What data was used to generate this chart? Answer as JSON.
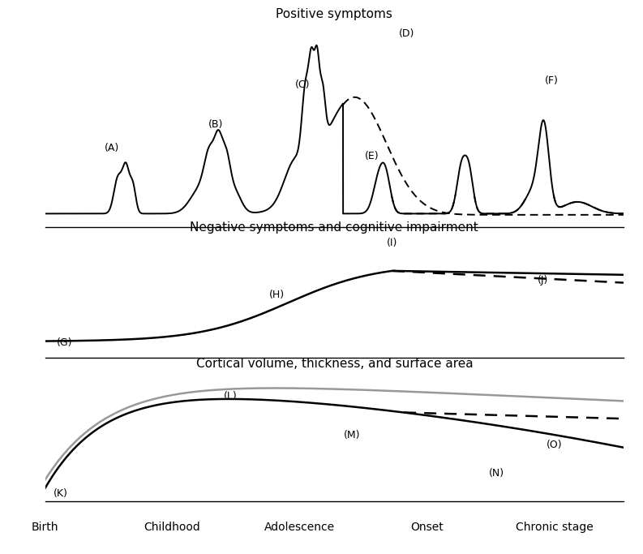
{
  "title1": "Positive symptoms",
  "title2": "Negative symptoms and cognitive impairment",
  "title3": "Cortical volume, thickness, and surface area",
  "x_labels": [
    "Birth",
    "Childhood",
    "Adolescence",
    "Onset",
    "Chronic stage"
  ],
  "x_tick_pos": [
    0.0,
    0.22,
    0.44,
    0.66,
    0.88
  ],
  "label_A": "(A)",
  "label_B": "(B)",
  "label_C": "(C)",
  "label_D": "(D)",
  "label_E": "(E)",
  "label_F": "(F)",
  "label_G": "(G)",
  "label_H": "(H)",
  "label_I": "(I)",
  "label_J": "(J)",
  "label_K": "(K)",
  "label_L": "(L)",
  "label_M": "(M)",
  "label_N": "(N)",
  "label_O": "(O)"
}
